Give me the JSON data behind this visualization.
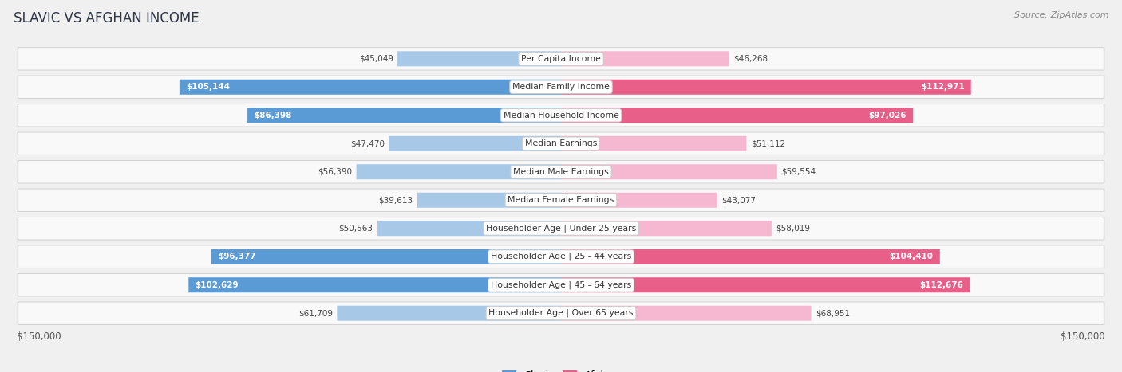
{
  "title": "SLAVIC VS AFGHAN INCOME",
  "source": "Source: ZipAtlas.com",
  "max_value": 150000,
  "categories": [
    "Per Capita Income",
    "Median Family Income",
    "Median Household Income",
    "Median Earnings",
    "Median Male Earnings",
    "Median Female Earnings",
    "Householder Age | Under 25 years",
    "Householder Age | 25 - 44 years",
    "Householder Age | 45 - 64 years",
    "Householder Age | Over 65 years"
  ],
  "slavic_values": [
    45049,
    105144,
    86398,
    47470,
    56390,
    39613,
    50563,
    96377,
    102629,
    61709
  ],
  "afghan_values": [
    46268,
    112971,
    97026,
    51112,
    59554,
    43077,
    58019,
    104410,
    112676,
    68951
  ],
  "slavic_labels": [
    "$45,049",
    "$105,144",
    "$86,398",
    "$47,470",
    "$56,390",
    "$39,613",
    "$50,563",
    "$96,377",
    "$102,629",
    "$61,709"
  ],
  "afghan_labels": [
    "$46,268",
    "$112,971",
    "$97,026",
    "$51,112",
    "$59,554",
    "$43,077",
    "$58,019",
    "$104,410",
    "$112,676",
    "$68,951"
  ],
  "slavic_color_light": "#a8c8e8",
  "slavic_color_dark": "#5b9bd5",
  "afghan_color_light": "#f5b8d0",
  "afghan_color_dark": "#e8608a",
  "bg_color": "#f0f0f0",
  "row_bg_light": "#f8f8f8",
  "row_bg_white": "#ffffff",
  "x_tick_label": "$150,000",
  "legend_slavic": "Slavic",
  "legend_afghan": "Afghan",
  "slavic_large_threshold": 80000,
  "afghan_large_threshold": 80000,
  "title_color": "#2d3748",
  "source_color": "#888888",
  "label_text_color": "#444444",
  "white_text_color": "#ffffff"
}
